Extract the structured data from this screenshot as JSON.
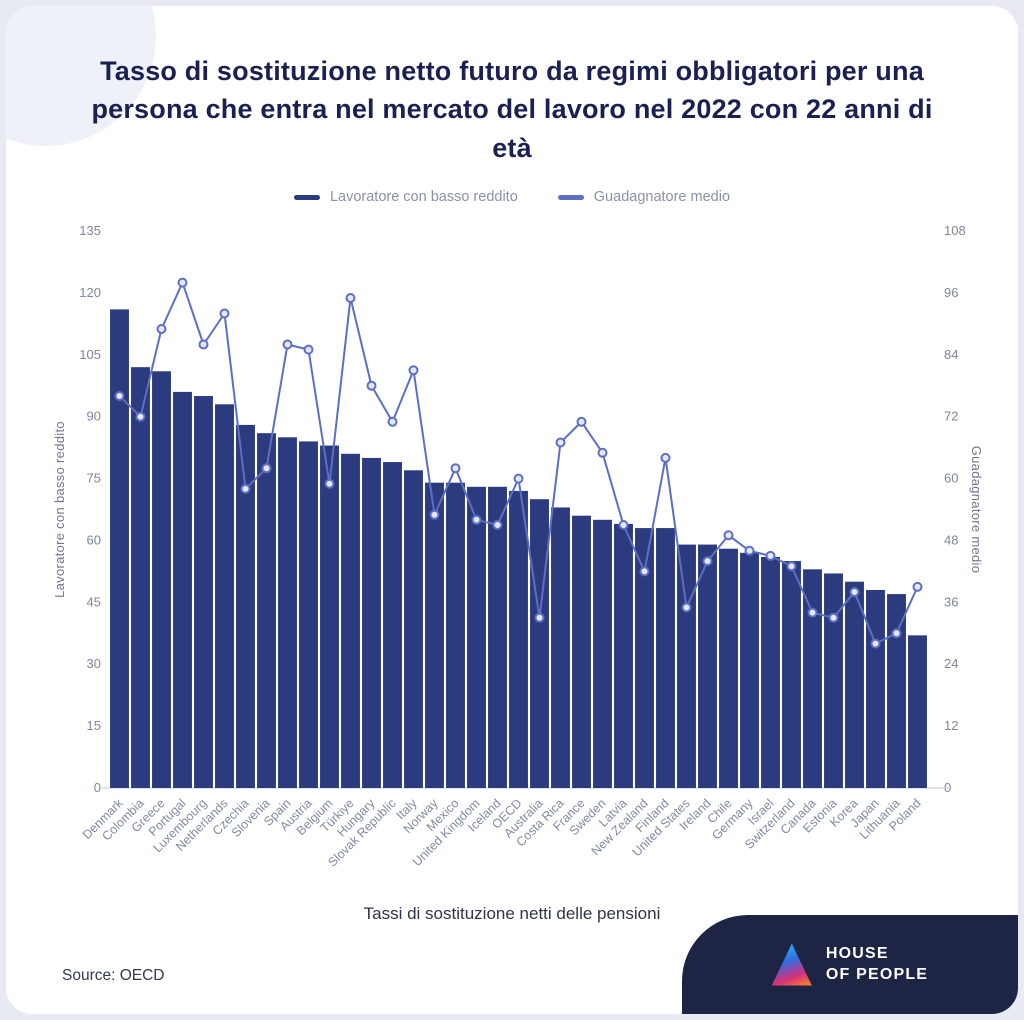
{
  "page": {
    "title": "Tasso di sostituzione netto futuro da regimi obbligatori per una persona che entra nel mercato del lavoro nel 2022 con 22 anni di età",
    "source": "Source: OECD"
  },
  "legend": [
    {
      "label": "Lavoratore con basso reddito",
      "color": "#2c3a7e"
    },
    {
      "label": "Guadagnatore medio",
      "color": "#5d6fc2"
    }
  ],
  "logo": {
    "line1": "HOUSE",
    "line2": "OF PEOPLE"
  },
  "colors": {
    "bar": "#2c3a7e",
    "line": "#5d6fc2",
    "point_fill": "#e4e7f5",
    "panel": "#1d2444",
    "title_text": "#1a2151"
  },
  "chart_data": {
    "type": "bar",
    "subtype": "bar+line combo",
    "title": "Tasso di sostituzione netto futuro da regimi obbligatori per una persona che entra nel mercato del lavoro nel 2022 con 22 anni di età",
    "xlabel": "Tassi di sostituzione netti delle pensioni",
    "grid": false,
    "legend_position": "top-center",
    "categories": [
      "Denmark",
      "Colombia",
      "Greece",
      "Portugal",
      "Luxembourg",
      "Netherlands",
      "Czechia",
      "Slovenia",
      "Spain",
      "Austria",
      "Belgium",
      "Türkiye",
      "Hungary",
      "Slovak Republic",
      "Italy",
      "Norway",
      "Mexico",
      "United Kingdom",
      "Iceland",
      "OECD",
      "Australia",
      "Costa Rica",
      "France",
      "Sweden",
      "Latvia",
      "New Zealand",
      "Finland",
      "United States",
      "Ireland",
      "Chile",
      "Germany",
      "Israel",
      "Switzerland",
      "Canada",
      "Estonia",
      "Korea",
      "Japan",
      "Lithuania",
      "Poland"
    ],
    "series": [
      {
        "name": "Lavoratore con basso reddito",
        "type": "bar",
        "axis": "left",
        "color": "#2c3a7e",
        "values": [
          116,
          102,
          101,
          96,
          95,
          93,
          88,
          86,
          85,
          84,
          83,
          81,
          80,
          79,
          77,
          74,
          74,
          73,
          73,
          72,
          70,
          68,
          66,
          65,
          64,
          63,
          63,
          59,
          59,
          58,
          57,
          56,
          55,
          53,
          52,
          50,
          48,
          47,
          37
        ]
      },
      {
        "name": "Guadagnatore medio",
        "type": "line",
        "axis": "right",
        "color": "#5d6fc2",
        "values": [
          76,
          72,
          89,
          98,
          86,
          92,
          58,
          62,
          86,
          85,
          59,
          95,
          78,
          71,
          81,
          53,
          62,
          52,
          51,
          60,
          33,
          67,
          71,
          65,
          51,
          42,
          64,
          35,
          44,
          49,
          46,
          45,
          43,
          34,
          33,
          38,
          28,
          30,
          39
        ]
      }
    ],
    "left_axis": {
      "title": "Lavoratore con basso reddito",
      "min": 0,
      "max": 135,
      "ticks": [
        0,
        15,
        30,
        45,
        60,
        75,
        90,
        105,
        120,
        135
      ]
    },
    "right_axis": {
      "title": "Guadagnatore medio",
      "min": 0,
      "max": 108,
      "ticks": [
        0,
        12,
        24,
        36,
        48,
        60,
        72,
        84,
        96,
        108
      ]
    }
  }
}
